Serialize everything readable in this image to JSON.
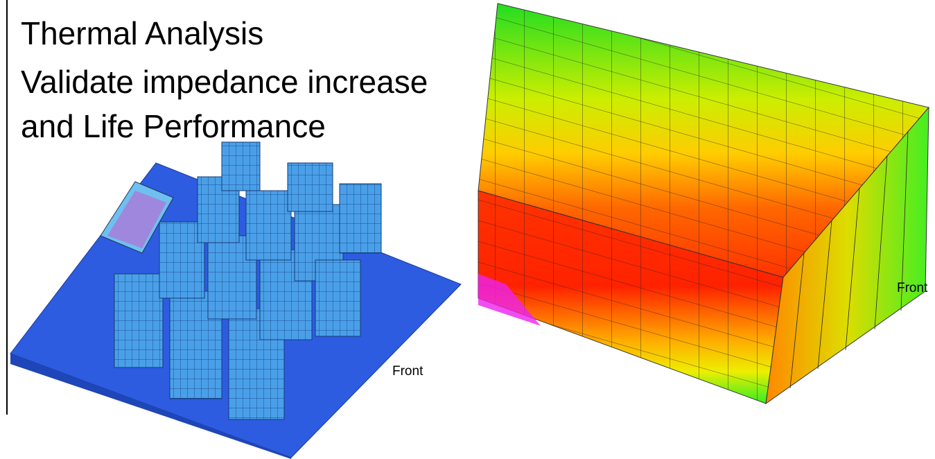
{
  "title_lines": [
    "Thermal Analysis",
    "Validate impedance increase",
    "and Life Performance"
  ],
  "figures": [
    {
      "label": "Front"
    },
    {
      "label": "Front"
    }
  ]
}
